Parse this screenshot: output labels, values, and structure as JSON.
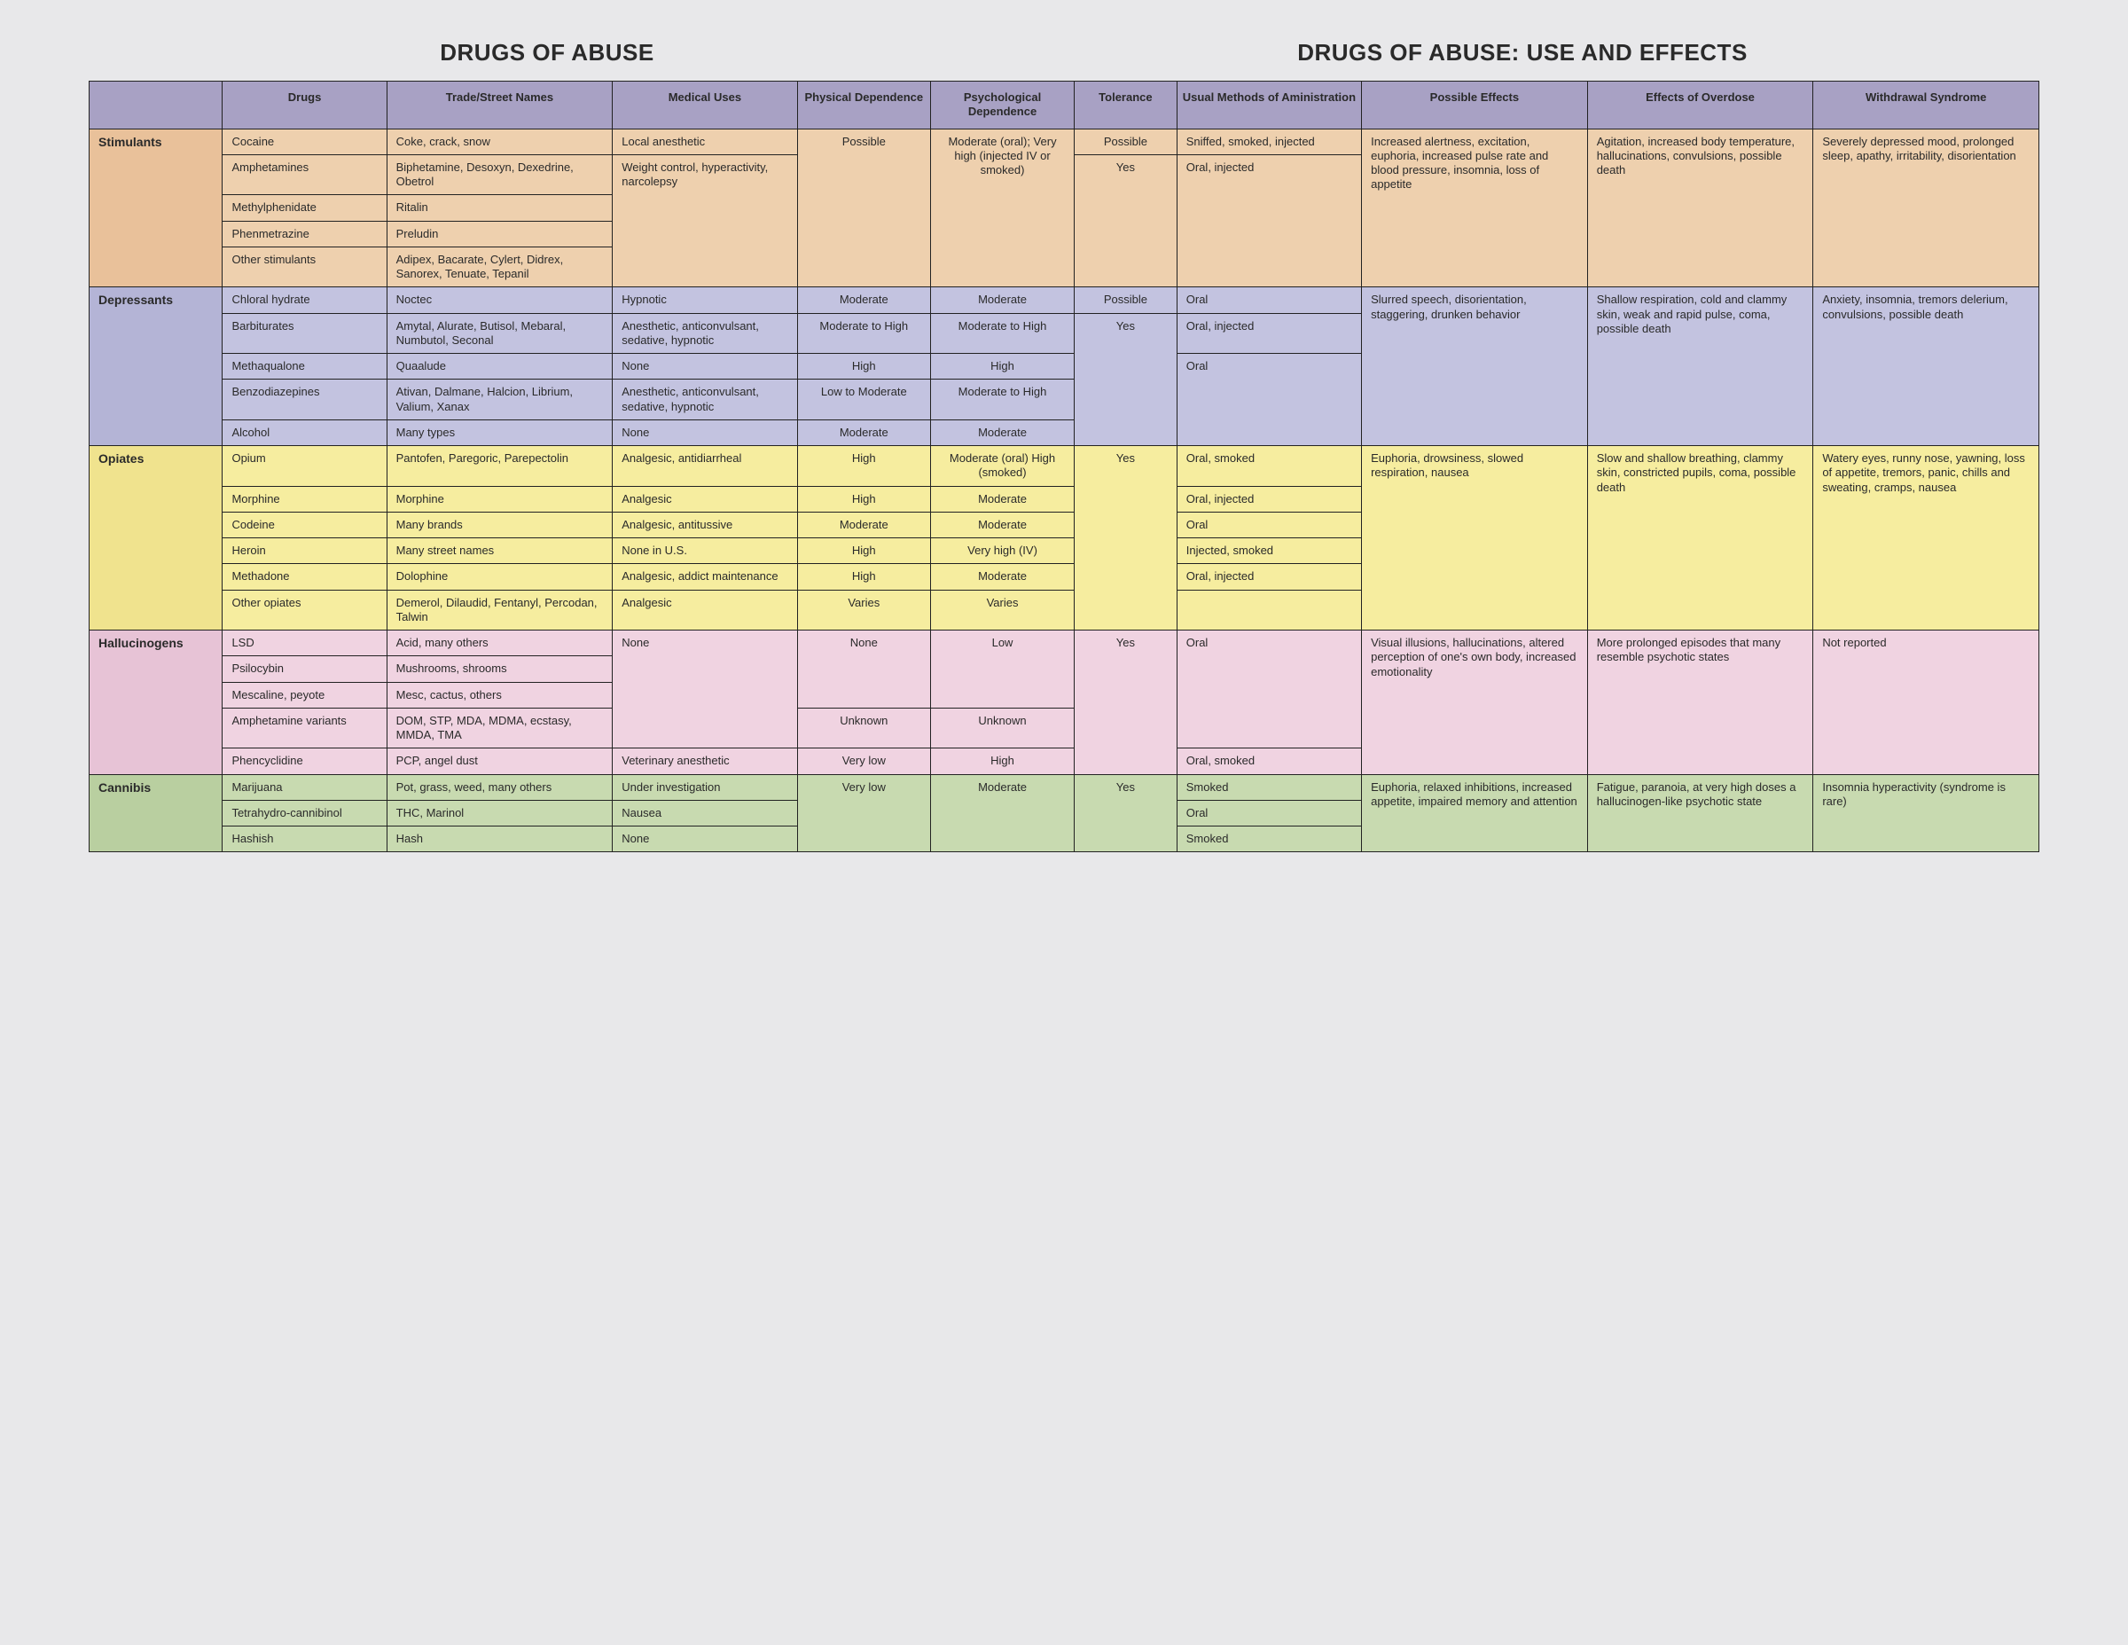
{
  "titles": {
    "left": "DRUGS OF ABUSE",
    "right": "DRUGS OF ABUSE: USE AND EFFECTS"
  },
  "colors": {
    "header_bg": "#a8a1c4",
    "border": "#222222",
    "categories": {
      "stimulants": {
        "label_bg": "#e9c19a",
        "row_bg": "#eed0ae"
      },
      "depressants": {
        "label_bg": "#b4b4d6",
        "row_bg": "#c3c3e0"
      },
      "opiates": {
        "label_bg": "#f0e38e",
        "row_bg": "#f6ed9f"
      },
      "hallucinogens": {
        "label_bg": "#e7c3d6",
        "row_bg": "#f0d3e1"
      },
      "cannibis": {
        "label_bg": "#b9cfa0",
        "row_bg": "#c8dab0"
      }
    }
  },
  "columns": [
    "Drugs",
    "Trade/Street Names",
    "Medical Uses",
    "Physical Dependence",
    "Psychological Dependence",
    "Tolerance",
    "Usual Methods of Aministration",
    "Possible Effects",
    "Effects of Overdose",
    "Withdrawal Syndrome"
  ],
  "categories": [
    {
      "key": "stimulants",
      "label": "Stimulants",
      "shared": {
        "possible_effects": "Increased alertness, excitation, euphoria, increased pulse rate and blood pressure, insomnia, loss of appetite",
        "overdose": "Agitation, increased body temperature, hallucinations, convulsions, possible death",
        "withdrawal": "Severely depressed mood, prolonged sleep, apathy, irritability, disorientation"
      },
      "rows": [
        {
          "drug": "Cocaine",
          "trade": "Coke, crack, snow",
          "medical": "Local anesthetic",
          "physical": "Possible",
          "psych": "Moderate (oral); Very high (injected IV or smoked)",
          "tolerance": "Possible",
          "method": "Sniffed, smoked, injected",
          "physical_span": 5,
          "psych_span": 5
        },
        {
          "drug": "Amphetamines",
          "trade": "Biphetamine, Desoxyn, Dexedrine, Obetrol",
          "medical": "Weight control, hyperactivity, narcolepsy",
          "medical_span": 4,
          "tolerance": "Yes",
          "tolerance_span": 4,
          "method": "Oral, injected",
          "method_span": 4
        },
        {
          "drug": "Methylphenidate",
          "trade": "Ritalin"
        },
        {
          "drug": "Phenmetrazine",
          "trade": "Preludin"
        },
        {
          "drug": "Other stimulants",
          "trade": "Adipex, Bacarate, Cylert, Didrex, Sanorex, Tenuate, Tepanil"
        }
      ]
    },
    {
      "key": "depressants",
      "label": "Depressants",
      "shared": {
        "possible_effects": "Slurred speech, disorientation, staggering, drunken behavior",
        "overdose": "Shallow respiration, cold and clammy skin, weak and rapid pulse, coma, possible death",
        "withdrawal": "Anxiety, insomnia, tremors delerium, convulsions, possible death"
      },
      "rows": [
        {
          "drug": "Chloral hydrate",
          "trade": "Noctec",
          "medical": "Hypnotic",
          "physical": "Moderate",
          "psych": "Moderate",
          "tolerance": "Possible",
          "method": "Oral"
        },
        {
          "drug": "Barbiturates",
          "trade": "Amytal, Alurate, Butisol, Mebaral, Numbutol, Seconal",
          "medical": "Anesthetic, anticonvulsant, sedative, hypnotic",
          "physical": "Moderate to High",
          "psych": "Moderate to High",
          "tolerance": "Yes",
          "tolerance_span": 4,
          "method": "Oral, injected"
        },
        {
          "drug": "Methaqualone",
          "trade": "Quaalude",
          "medical": "None",
          "physical": "High",
          "psych": "High",
          "method": "Oral",
          "method_span": 3
        },
        {
          "drug": "Benzodiazepines",
          "trade": "Ativan, Dalmane, Halcion, Librium, Valium, Xanax",
          "medical": "Anesthetic, anticonvulsant, sedative, hypnotic",
          "physical": "Low to Moderate",
          "psych": "Moderate to High"
        },
        {
          "drug": "Alcohol",
          "trade": "Many types",
          "medical": "None",
          "physical": "Moderate",
          "psych": "Moderate"
        }
      ]
    },
    {
      "key": "opiates",
      "label": "Opiates",
      "shared": {
        "possible_effects": "Euphoria, drowsiness, slowed respiration, nausea",
        "overdose": "Slow and shallow breathing, clammy skin, constricted pupils, coma, possible death",
        "withdrawal": "Watery eyes, runny nose, yawning, loss of appetite, tremors, panic, chills and sweating, cramps, nausea"
      },
      "rows": [
        {
          "drug": "Opium",
          "trade": "Pantofen, Paregoric, Parepectolin",
          "medical": "Analgesic, antidiarrheal",
          "physical": "High",
          "psych": "Moderate (oral) High (smoked)",
          "tolerance": "Yes",
          "tolerance_span": 6,
          "method": "Oral, smoked"
        },
        {
          "drug": "Morphine",
          "trade": "Morphine",
          "medical": "Analgesic",
          "physical": "High",
          "psych": "Moderate",
          "method": "Oral, injected"
        },
        {
          "drug": "Codeine",
          "trade": "Many brands",
          "medical": "Analgesic, antitussive",
          "physical": "Moderate",
          "psych": "Moderate",
          "method": "Oral"
        },
        {
          "drug": "Heroin",
          "trade": "Many street names",
          "medical": "None in U.S.",
          "physical": "High",
          "psych": "Very high (IV)",
          "method": "Injected, smoked"
        },
        {
          "drug": "Methadone",
          "trade": "Dolophine",
          "medical": "Analgesic, addict maintenance",
          "physical": "High",
          "psych": "Moderate",
          "method": "Oral, injected"
        },
        {
          "drug": "Other opiates",
          "trade": "Demerol, Dilaudid, Fentanyl, Percodan, Talwin",
          "medical": "Analgesic",
          "physical": "Varies",
          "psych": "Varies",
          "method": "",
          "method_omit": true
        }
      ]
    },
    {
      "key": "hallucinogens",
      "label": "Hallucinogens",
      "shared": {
        "possible_effects": "Visual illusions, hallucinations, altered perception of one's own body, increased emotionality",
        "overdose": "More prolonged episodes that many resemble psychotic states",
        "withdrawal": "Not reported"
      },
      "rows": [
        {
          "drug": "LSD",
          "trade": "Acid, many others",
          "medical": "None",
          "medical_span": 4,
          "physical": "None",
          "physical_span": 3,
          "psych": "Low",
          "psych_span": 3,
          "tolerance": "Yes",
          "tolerance_span": 5,
          "method": "Oral",
          "method_span": 4
        },
        {
          "drug": "Psilocybin",
          "trade": "Mushrooms, shrooms"
        },
        {
          "drug": "Mescaline, peyote",
          "trade": "Mesc, cactus, others"
        },
        {
          "drug": "Amphetamine variants",
          "trade": "DOM, STP, MDA, MDMA, ecstasy, MMDA, TMA",
          "physical": "Unknown",
          "psych": "Unknown"
        },
        {
          "drug": "Phencyclidine",
          "trade": "PCP, angel dust",
          "medical": "Veterinary anesthetic",
          "physical": "Very low",
          "psych": "High",
          "method": "Oral, smoked"
        }
      ]
    },
    {
      "key": "cannibis",
      "label": "Cannibis",
      "shared": {
        "possible_effects": "Euphoria, relaxed inhibitions, increased appetite, impaired memory and attention",
        "overdose": "Fatigue, paranoia, at very high doses a hallucinogen-like psychotic state",
        "withdrawal": "Insomnia hyperactivity (syndrome is rare)"
      },
      "rows": [
        {
          "drug": "Marijuana",
          "trade": "Pot, grass, weed, many others",
          "medical": "Under investigation",
          "physical": "Very low",
          "physical_span": 3,
          "psych": "Moderate",
          "psych_span": 3,
          "tolerance": "Yes",
          "tolerance_span": 3,
          "method": "Smoked"
        },
        {
          "drug": "Tetrahydro-cannibinol",
          "trade": "THC, Marinol",
          "medical": "Nausea",
          "method": "Oral"
        },
        {
          "drug": "Hashish",
          "trade": "Hash",
          "medical": "None",
          "method": "Smoked"
        }
      ]
    }
  ]
}
